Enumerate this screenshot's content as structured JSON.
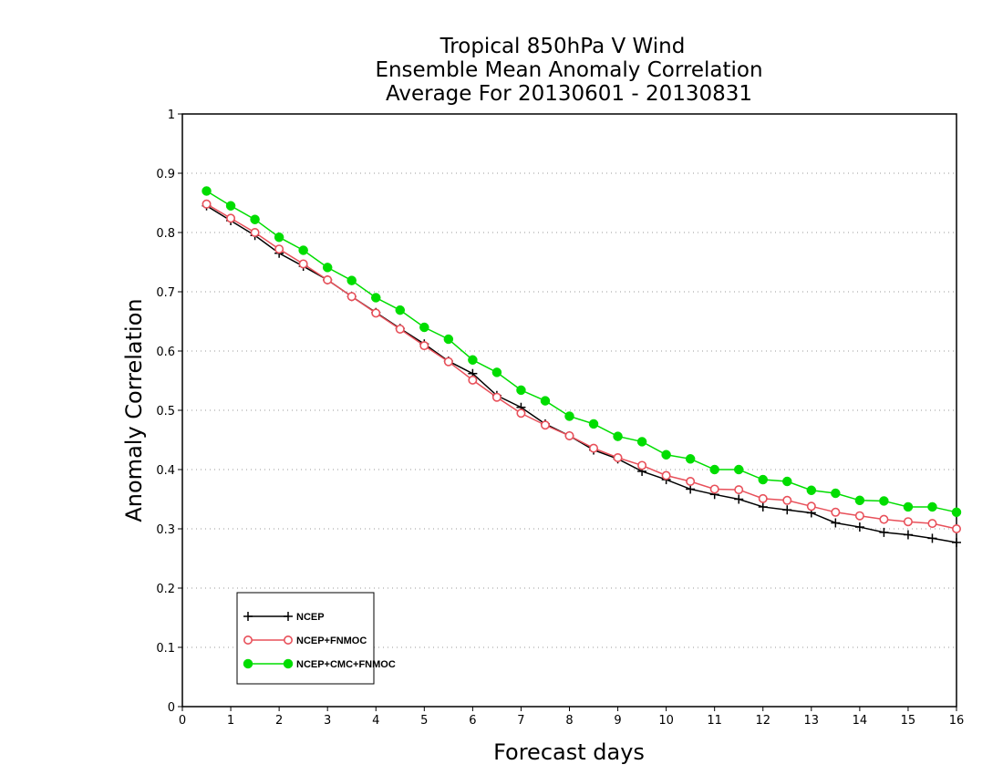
{
  "chart_data": {
    "type": "line",
    "title_lines": [
      "Tropical 850hPa V Wind",
      "Ensemble Mean Anomaly Correlation",
      "Average For 20130601 - 20130831"
    ],
    "xlabel": "Forecast days",
    "ylabel": "Anomaly Correlation",
    "xlim": [
      0,
      16
    ],
    "ylim": [
      0,
      1
    ],
    "x_ticks": [
      "0",
      "1",
      "2",
      "3",
      "4",
      "5",
      "6",
      "7",
      "8",
      "9",
      "10",
      "11",
      "12",
      "13",
      "14",
      "15",
      "16"
    ],
    "y_ticks": [
      "0",
      "0.1",
      "0.2",
      "0.3",
      "0.4",
      "0.5",
      "0.6",
      "0.7",
      "0.8",
      "0.9",
      "1"
    ],
    "grid": "horizontal dotted",
    "legend_position": "bottom-left",
    "x": [
      0.5,
      1,
      1.5,
      2,
      2.5,
      3,
      3.5,
      4,
      4.5,
      5,
      5.5,
      6,
      6.5,
      7,
      7.5,
      8,
      8.5,
      9,
      9.5,
      10,
      10.5,
      11,
      11.5,
      12,
      12.5,
      13,
      13.5,
      14,
      14.5,
      15,
      15.5,
      16
    ],
    "series": [
      {
        "name": "NCEP",
        "color": "#000000",
        "marker": "plus",
        "values": [
          0.845,
          0.82,
          0.795,
          0.765,
          0.743,
          0.72,
          0.692,
          0.665,
          0.638,
          0.612,
          0.583,
          0.562,
          0.525,
          0.505,
          0.477,
          0.457,
          0.433,
          0.418,
          0.397,
          0.383,
          0.367,
          0.358,
          0.35,
          0.337,
          0.332,
          0.327,
          0.31,
          0.303,
          0.294,
          0.29,
          0.284,
          0.277
        ]
      },
      {
        "name": "NCEP+FNMOC",
        "color": "#e8505a",
        "marker": "open-circle",
        "values": [
          0.848,
          0.824,
          0.8,
          0.772,
          0.747,
          0.72,
          0.692,
          0.664,
          0.637,
          0.609,
          0.582,
          0.551,
          0.522,
          0.495,
          0.475,
          0.457,
          0.436,
          0.42,
          0.407,
          0.39,
          0.38,
          0.367,
          0.366,
          0.351,
          0.348,
          0.338,
          0.328,
          0.322,
          0.316,
          0.312,
          0.309,
          0.3
        ]
      },
      {
        "name": "NCEP+CMC+FNMOC",
        "color": "#00dd00",
        "marker": "filled-circle",
        "values": [
          0.87,
          0.845,
          0.822,
          0.792,
          0.77,
          0.741,
          0.719,
          0.69,
          0.669,
          0.64,
          0.62,
          0.585,
          0.564,
          0.534,
          0.516,
          0.49,
          0.477,
          0.456,
          0.447,
          0.425,
          0.418,
          0.4,
          0.4,
          0.383,
          0.38,
          0.365,
          0.36,
          0.348,
          0.347,
          0.337,
          0.337,
          0.328
        ]
      }
    ]
  }
}
